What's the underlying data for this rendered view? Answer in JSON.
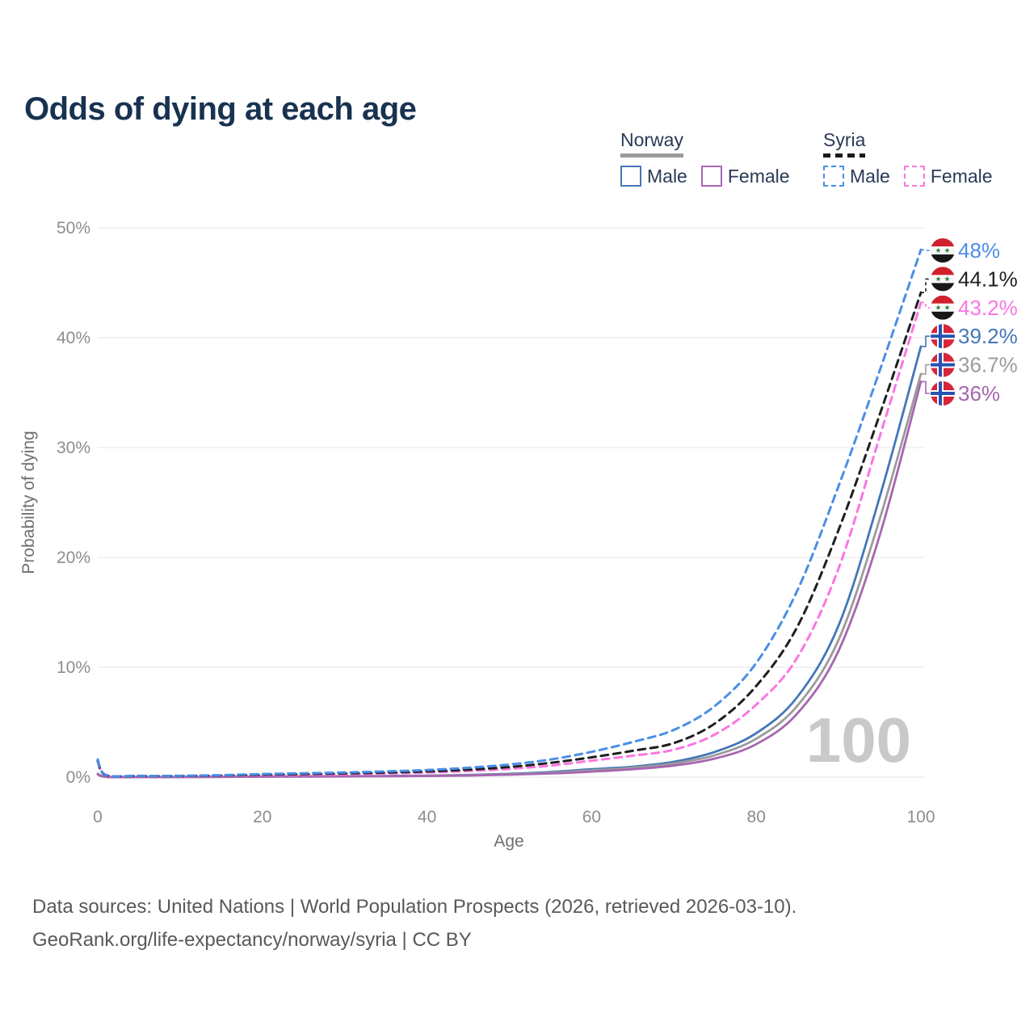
{
  "title": "Odds of dying at each age",
  "legend": {
    "groups": [
      {
        "title": "Norway",
        "line_style": "solid",
        "line_color": "#9a9a9a",
        "items": [
          {
            "label": "Male",
            "color": "#4377b8",
            "dashed": false
          },
          {
            "label": "Female",
            "color": "#a766b0",
            "dashed": false
          }
        ]
      },
      {
        "title": "Syria",
        "line_style": "dashed",
        "line_color": "#1a1a1a",
        "items": [
          {
            "label": "Male",
            "color": "#4a8ee6",
            "dashed": true
          },
          {
            "label": "Female",
            "color": "#fb76e1",
            "dashed": true
          }
        ]
      }
    ]
  },
  "chart_data": {
    "type": "line",
    "title": "Odds of dying at each age",
    "xlabel": "Age",
    "ylabel": "Probability of dying",
    "xlim": [
      0,
      100
    ],
    "ylim": [
      0,
      50
    ],
    "xticks": [
      0,
      20,
      40,
      60,
      80,
      100
    ],
    "yticks": [
      0,
      10,
      20,
      30,
      40,
      50
    ],
    "ytick_labels": [
      "0%",
      "10%",
      "20%",
      "30%",
      "40%",
      "50%"
    ],
    "grid": "horizontal",
    "legend_position": "top-right",
    "age_indicator": "100",
    "unit": "percent",
    "x": [
      0,
      1,
      5,
      10,
      15,
      20,
      25,
      30,
      35,
      40,
      45,
      50,
      55,
      60,
      65,
      70,
      75,
      80,
      85,
      90,
      95,
      100
    ],
    "series": [
      {
        "name": "Syria Male",
        "country": "Syria",
        "sex": "Male",
        "flag": "syria",
        "color": "#4a8ee6",
        "dashed": true,
        "end_label": "48%",
        "end_value": 48,
        "values": [
          1.6,
          0.2,
          0.12,
          0.12,
          0.18,
          0.28,
          0.35,
          0.42,
          0.52,
          0.65,
          0.85,
          1.15,
          1.6,
          2.3,
          3.2,
          4.3,
          6.5,
          10.4,
          17,
          26.5,
          37,
          48
        ]
      },
      {
        "name": "Syria Both sexes",
        "country": "Syria",
        "sex": "Both",
        "flag": "syria",
        "color": "#1f1f1f",
        "dashed": true,
        "end_label": "44.1%",
        "end_value": 44.1,
        "values": [
          1.5,
          0.18,
          0.1,
          0.1,
          0.15,
          0.22,
          0.28,
          0.34,
          0.42,
          0.52,
          0.68,
          0.92,
          1.3,
          1.8,
          2.4,
          3.1,
          4.9,
          8.3,
          13.7,
          22.5,
          33,
          44.1
        ]
      },
      {
        "name": "Syria Female",
        "country": "Syria",
        "sex": "Female",
        "flag": "syria",
        "color": "#fb76e1",
        "dashed": true,
        "end_label": "43.2%",
        "end_value": 43.2,
        "values": [
          1.4,
          0.16,
          0.09,
          0.09,
          0.12,
          0.16,
          0.2,
          0.26,
          0.33,
          0.42,
          0.55,
          0.75,
          1.05,
          1.5,
          1.95,
          2.5,
          3.9,
          6.6,
          10.9,
          19,
          31,
          43.2
        ]
      },
      {
        "name": "Norway Male",
        "country": "Norway",
        "sex": "Male",
        "flag": "norway",
        "color": "#4377b8",
        "dashed": false,
        "end_label": "39.2%",
        "end_value": 39.2,
        "values": [
          0.3,
          0.03,
          0.01,
          0.01,
          0.03,
          0.06,
          0.07,
          0.08,
          0.1,
          0.14,
          0.2,
          0.3,
          0.47,
          0.72,
          0.95,
          1.4,
          2.3,
          4.0,
          7.3,
          13.8,
          25.5,
          39.2
        ]
      },
      {
        "name": "Norway Both sexes",
        "country": "Norway",
        "sex": "Both",
        "flag": "norway",
        "color": "#9b9b9b",
        "dashed": false,
        "end_label": "36.7%",
        "end_value": 36.7,
        "values": [
          0.27,
          0.025,
          0.01,
          0.01,
          0.025,
          0.05,
          0.06,
          0.07,
          0.09,
          0.12,
          0.17,
          0.26,
          0.4,
          0.62,
          0.85,
          1.25,
          2.0,
          3.5,
          6.5,
          12.5,
          23.5,
          36.7
        ]
      },
      {
        "name": "Norway Female",
        "country": "Norway",
        "sex": "Female",
        "flag": "norway",
        "color": "#a766b0",
        "dashed": false,
        "end_label": "36%",
        "end_value": 36,
        "values": [
          0.24,
          0.02,
          0.01,
          0.01,
          0.02,
          0.04,
          0.05,
          0.06,
          0.08,
          0.1,
          0.14,
          0.22,
          0.33,
          0.5,
          0.72,
          1.05,
          1.7,
          3.0,
          5.8,
          11.5,
          22,
          36
        ]
      }
    ]
  },
  "footer": {
    "line1": "Data sources: United Nations | World Population Prospects (2026, retrieved 2026-03-10).",
    "line2": "GeoRank.org/life-expectancy/norway/syria | CC BY"
  }
}
